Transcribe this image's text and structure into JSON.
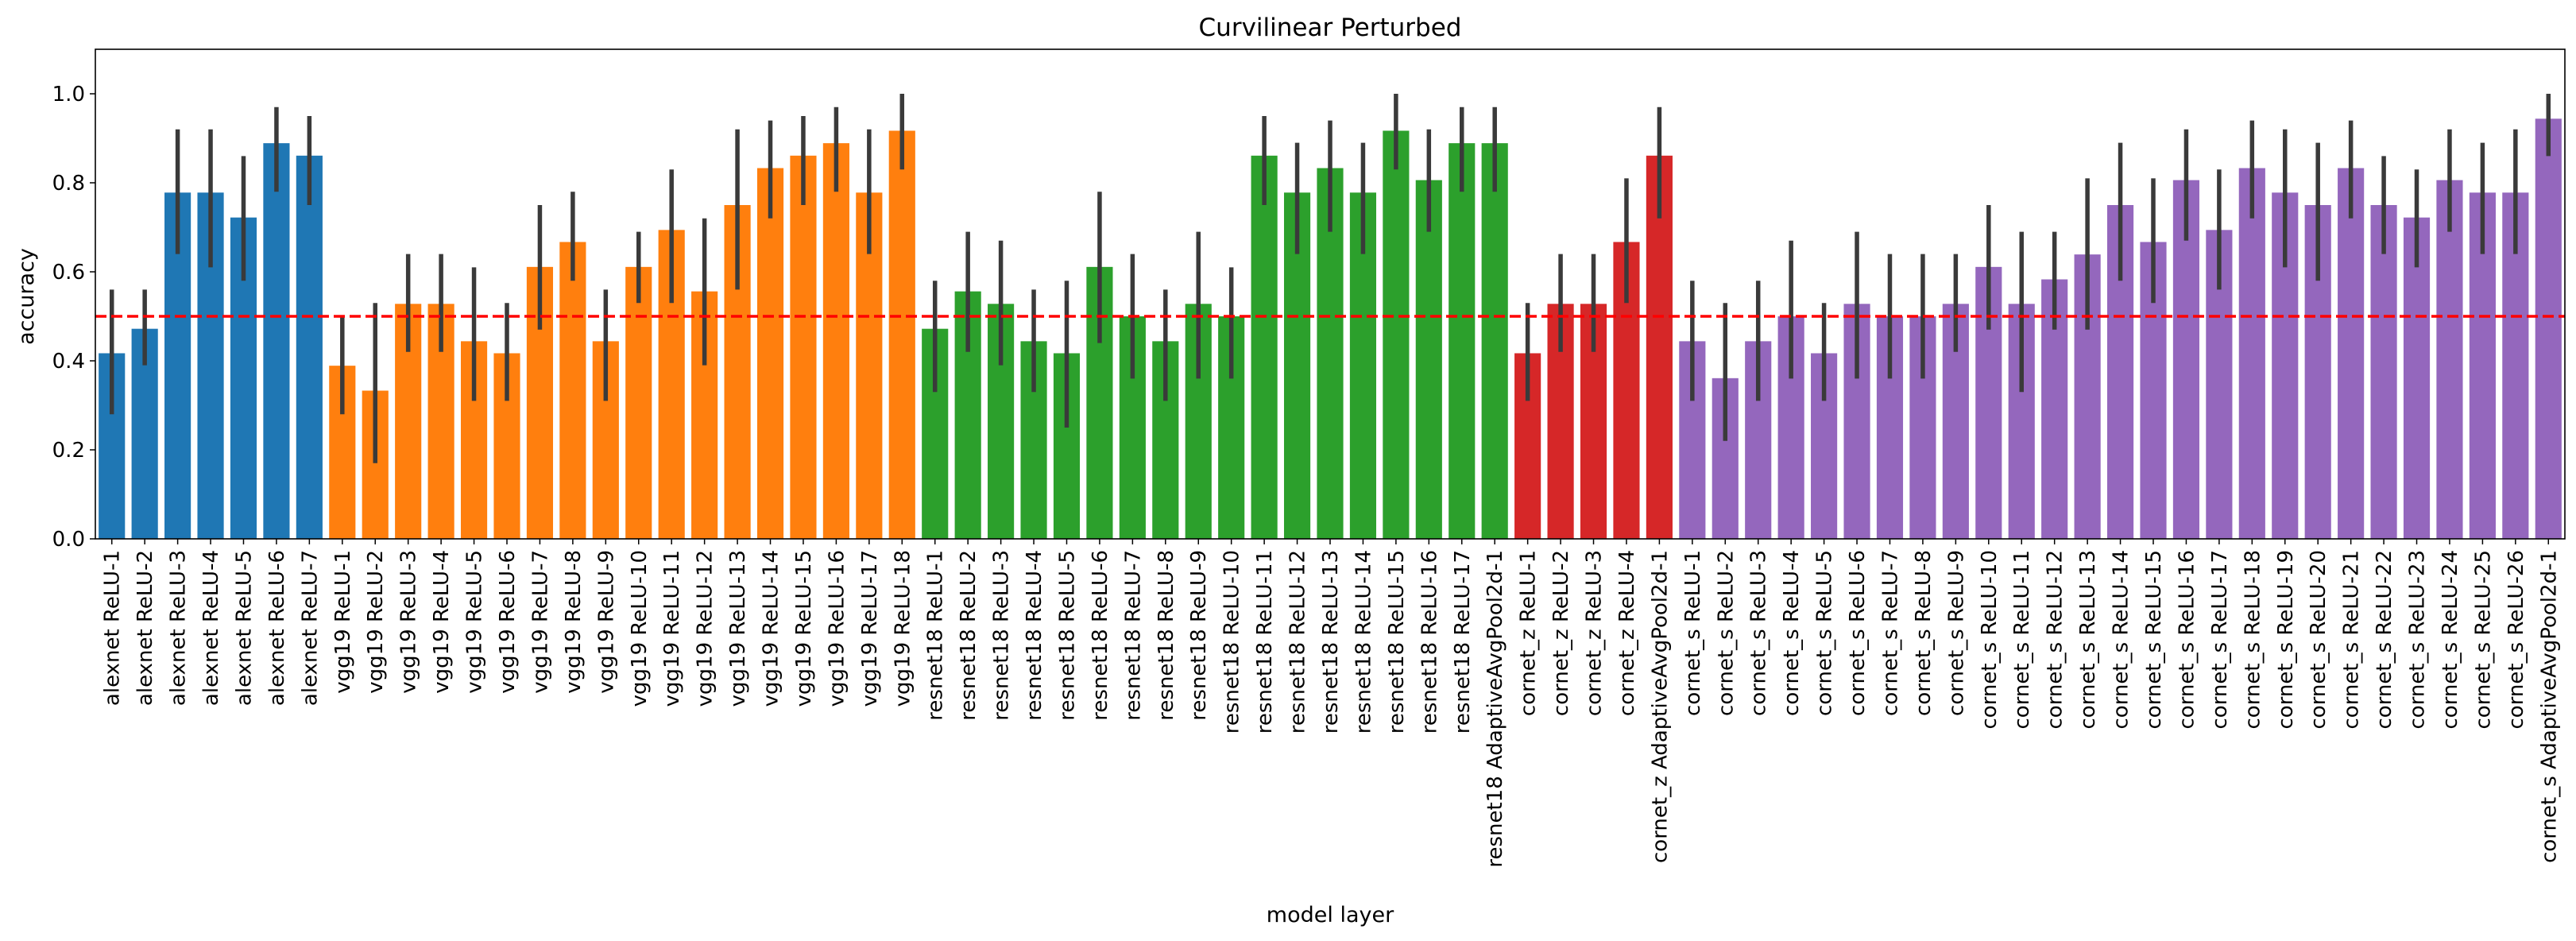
{
  "chart_data": {
    "type": "bar",
    "title": "Curvilinear Perturbed",
    "xlabel": "model layer",
    "ylabel": "accuracy",
    "ylim": [
      0,
      1.1
    ],
    "yticks": [
      "0.0",
      "0.2",
      "0.4",
      "0.6",
      "0.8",
      "1.0"
    ],
    "reference_line": {
      "value": 0.5,
      "color": "#ff0000",
      "style": "dashed"
    },
    "groups": [
      {
        "color": "#1f77b4",
        "count": 7
      },
      {
        "color": "#ff7f0e",
        "count": 18
      },
      {
        "color": "#2ca02c",
        "count": 18
      },
      {
        "color": "#d62728",
        "count": 5
      },
      {
        "color": "#9467bd",
        "count": 27
      }
    ],
    "categories": [
      "alexnet ReLU-1",
      "alexnet ReLU-2",
      "alexnet ReLU-3",
      "alexnet ReLU-4",
      "alexnet ReLU-5",
      "alexnet ReLU-6",
      "alexnet ReLU-7",
      "vgg19 ReLU-1",
      "vgg19 ReLU-2",
      "vgg19 ReLU-3",
      "vgg19 ReLU-4",
      "vgg19 ReLU-5",
      "vgg19 ReLU-6",
      "vgg19 ReLU-7",
      "vgg19 ReLU-8",
      "vgg19 ReLU-9",
      "vgg19 ReLU-10",
      "vgg19 ReLU-11",
      "vgg19 ReLU-12",
      "vgg19 ReLU-13",
      "vgg19 ReLU-14",
      "vgg19 ReLU-15",
      "vgg19 ReLU-16",
      "vgg19 ReLU-17",
      "vgg19 ReLU-18",
      "resnet18 ReLU-1",
      "resnet18 ReLU-2",
      "resnet18 ReLU-3",
      "resnet18 ReLU-4",
      "resnet18 ReLU-5",
      "resnet18 ReLU-6",
      "resnet18 ReLU-7",
      "resnet18 ReLU-8",
      "resnet18 ReLU-9",
      "resnet18 ReLU-10",
      "resnet18 ReLU-11",
      "resnet18 ReLU-12",
      "resnet18 ReLU-13",
      "resnet18 ReLU-14",
      "resnet18 ReLU-15",
      "resnet18 ReLU-16",
      "resnet18 ReLU-17",
      "resnet18 AdaptiveAvgPool2d-1",
      "cornet_z ReLU-1",
      "cornet_z ReLU-2",
      "cornet_z ReLU-3",
      "cornet_z ReLU-4",
      "cornet_z AdaptiveAvgPool2d-1",
      "cornet_s ReLU-1",
      "cornet_s ReLU-2",
      "cornet_s ReLU-3",
      "cornet_s ReLU-4",
      "cornet_s ReLU-5",
      "cornet_s ReLU-6",
      "cornet_s ReLU-7",
      "cornet_s ReLU-8",
      "cornet_s ReLU-9",
      "cornet_s ReLU-10",
      "cornet_s ReLU-11",
      "cornet_s ReLU-12",
      "cornet_s ReLU-13",
      "cornet_s ReLU-14",
      "cornet_s ReLU-15",
      "cornet_s ReLU-16",
      "cornet_s ReLU-17",
      "cornet_s ReLU-18",
      "cornet_s ReLU-19",
      "cornet_s ReLU-20",
      "cornet_s ReLU-21",
      "cornet_s ReLU-22",
      "cornet_s ReLU-23",
      "cornet_s ReLU-24",
      "cornet_s ReLU-25",
      "cornet_s ReLU-26",
      "cornet_s AdaptiveAvgPool2d-1"
    ],
    "values": [
      0.417,
      0.472,
      0.778,
      0.778,
      0.722,
      0.889,
      0.861,
      0.389,
      0.333,
      0.528,
      0.528,
      0.444,
      0.417,
      0.611,
      0.667,
      0.444,
      0.611,
      0.694,
      0.556,
      0.75,
      0.833,
      0.861,
      0.889,
      0.778,
      0.917,
      0.472,
      0.556,
      0.528,
      0.444,
      0.417,
      0.611,
      0.5,
      0.444,
      0.528,
      0.5,
      0.861,
      0.778,
      0.833,
      0.778,
      0.917,
      0.806,
      0.889,
      0.889,
      0.417,
      0.528,
      0.528,
      0.667,
      0.861,
      0.444,
      0.361,
      0.444,
      0.5,
      0.417,
      0.528,
      0.5,
      0.5,
      0.528,
      0.611,
      0.528,
      0.583,
      0.639,
      0.75,
      0.667,
      0.806,
      0.694,
      0.833,
      0.778,
      0.75,
      0.833,
      0.75,
      0.722,
      0.806,
      0.778,
      0.778,
      0.944
    ],
    "error_low": [
      0.28,
      0.39,
      0.64,
      0.61,
      0.58,
      0.78,
      0.75,
      0.28,
      0.17,
      0.42,
      0.42,
      0.31,
      0.31,
      0.47,
      0.58,
      0.31,
      0.53,
      0.53,
      0.39,
      0.56,
      0.72,
      0.75,
      0.78,
      0.64,
      0.83,
      0.33,
      0.42,
      0.39,
      0.33,
      0.25,
      0.44,
      0.36,
      0.31,
      0.36,
      0.36,
      0.75,
      0.64,
      0.69,
      0.64,
      0.83,
      0.69,
      0.78,
      0.78,
      0.31,
      0.42,
      0.42,
      0.53,
      0.72,
      0.31,
      0.22,
      0.31,
      0.36,
      0.31,
      0.36,
      0.36,
      0.36,
      0.42,
      0.47,
      0.33,
      0.47,
      0.47,
      0.58,
      0.53,
      0.67,
      0.56,
      0.72,
      0.61,
      0.58,
      0.72,
      0.64,
      0.61,
      0.69,
      0.64,
      0.64,
      0.86
    ],
    "error_high": [
      0.56,
      0.56,
      0.92,
      0.92,
      0.86,
      0.97,
      0.95,
      0.5,
      0.53,
      0.64,
      0.64,
      0.61,
      0.53,
      0.75,
      0.78,
      0.56,
      0.69,
      0.83,
      0.72,
      0.92,
      0.94,
      0.95,
      0.97,
      0.92,
      1.0,
      0.58,
      0.69,
      0.67,
      0.56,
      0.58,
      0.78,
      0.64,
      0.56,
      0.69,
      0.61,
      0.95,
      0.89,
      0.94,
      0.89,
      1.0,
      0.92,
      0.97,
      0.97,
      0.53,
      0.64,
      0.64,
      0.81,
      0.97,
      0.58,
      0.53,
      0.58,
      0.67,
      0.53,
      0.69,
      0.64,
      0.64,
      0.64,
      0.75,
      0.69,
      0.69,
      0.81,
      0.89,
      0.81,
      0.92,
      0.83,
      0.94,
      0.92,
      0.89,
      0.94,
      0.86,
      0.83,
      0.92,
      0.89,
      0.92,
      1.0
    ],
    "grid": false,
    "legend": "none"
  }
}
